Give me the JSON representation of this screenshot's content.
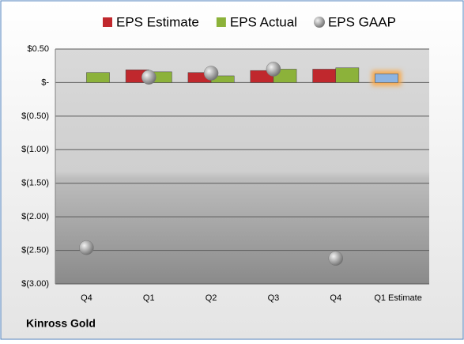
{
  "chart_data": {
    "type": "bar",
    "categories": [
      "Q4",
      "Q1",
      "Q2",
      "Q3",
      "Q4",
      "Q1 Estimate"
    ],
    "series": [
      {
        "name": "EPS Estimate",
        "color": "#c0282d",
        "values": [
          null,
          0.19,
          0.15,
          0.18,
          0.2,
          0.13
        ],
        "highlight": {
          "index": 5,
          "color": "#8db4e2",
          "glow": "#f8a94b"
        }
      },
      {
        "name": "EPS Actual",
        "color": "#8cb23a",
        "values": [
          0.15,
          0.16,
          0.1,
          0.2,
          0.22,
          null
        ]
      },
      {
        "name": "EPS GAAP",
        "color": "#a6a6a6",
        "marker": "bubble",
        "values": [
          -2.46,
          0.08,
          0.14,
          0.2,
          -2.62,
          null
        ]
      }
    ],
    "ylim": [
      -3.0,
      0.5
    ],
    "yticks": [
      {
        "value": 0.5,
        "label": "$0.50"
      },
      {
        "value": 0,
        "label": "$-"
      },
      {
        "value": -0.5,
        "label": "$(0.50)"
      },
      {
        "value": -1.0,
        "label": "$(1.00)"
      },
      {
        "value": -1.5,
        "label": "$(1.50)"
      },
      {
        "value": -2.0,
        "label": "$(2.00)"
      },
      {
        "value": -2.5,
        "label": "$(2.50)"
      },
      {
        "value": -3.0,
        "label": "$(3.00)"
      }
    ],
    "grid": true,
    "footer": "Kinross Gold"
  }
}
